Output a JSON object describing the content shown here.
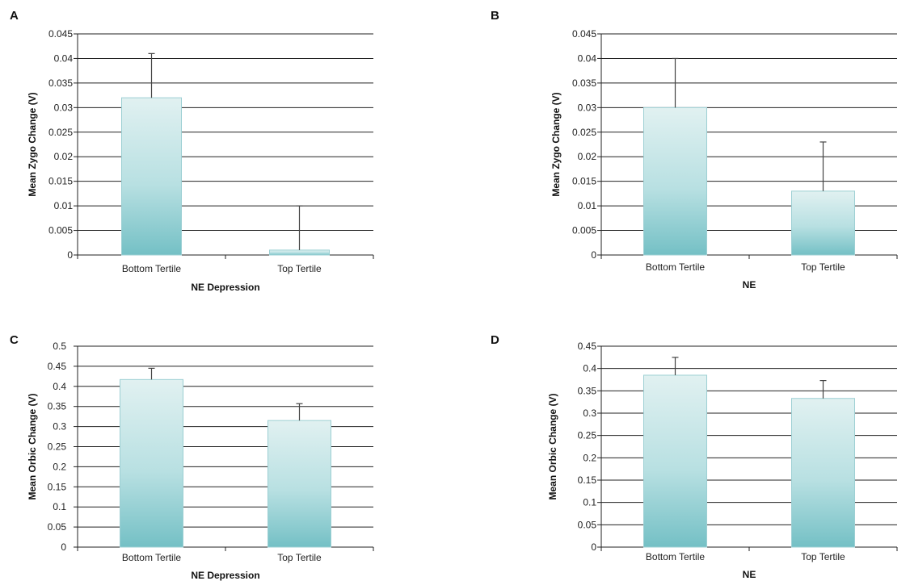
{
  "chart_data": [
    {
      "panel": "A",
      "type": "bar",
      "categories": [
        "Bottom Tertile",
        "Top Tertile"
      ],
      "values": [
        0.032,
        0.001
      ],
      "errors": [
        0.009,
        0.009
      ],
      "xlabel": "NE Depression",
      "ylabel": "Mean Zygo  Change (V)",
      "ylim": [
        0,
        0.045
      ],
      "yticks": [
        "0",
        "0.005",
        "0.01",
        "0.015",
        "0.02",
        "0.025",
        "0.03",
        "0.035",
        "0.04",
        "0.045"
      ],
      "grid": true
    },
    {
      "panel": "B",
      "type": "bar",
      "categories": [
        "Bottom Tertile",
        "Top Tertile"
      ],
      "values": [
        0.03,
        0.013
      ],
      "errors": [
        0.01,
        0.01
      ],
      "xlabel": "NE",
      "ylabel": "Mean Zygo Change (V)",
      "ylim": [
        0,
        0.045
      ],
      "yticks": [
        "0",
        "0.005",
        "0.01",
        "0.015",
        "0.02",
        "0.025",
        "0.03",
        "0.035",
        "0.04",
        "0.045"
      ],
      "grid": true
    },
    {
      "panel": "C",
      "type": "bar",
      "categories": [
        "Bottom Tertile",
        "Top Tertile"
      ],
      "values": [
        0.417,
        0.315
      ],
      "errors": [
        0.028,
        0.042
      ],
      "xlabel": "NE Depression",
      "ylabel": "Mean Orbic Change (V)",
      "ylim": [
        0,
        0.5
      ],
      "yticks": [
        "0",
        "0.05",
        "0.1",
        "0.15",
        "0.2",
        "0.25",
        "0.3",
        "0.35",
        "0.4",
        "0.45",
        "0.5"
      ],
      "grid": true
    },
    {
      "panel": "D",
      "type": "bar",
      "categories": [
        "Bottom Tertile",
        "Top Tertile"
      ],
      "values": [
        0.385,
        0.333
      ],
      "errors": [
        0.04,
        0.04
      ],
      "xlabel": "NE",
      "ylabel": "Mean Orbic Change (V)",
      "ylim": [
        0,
        0.45
      ],
      "yticks": [
        "0",
        "0.05",
        "0.1",
        "0.15",
        "0.2",
        "0.25",
        "0.3",
        "0.35",
        "0.4",
        "0.45"
      ],
      "grid": true
    }
  ],
  "colors": {
    "bar_top": "#e1f1f1",
    "bar_bottom": "#74c0c5",
    "bar_edge": "#9ccfd3",
    "grid": "#222222",
    "error_bar": "#444444"
  }
}
